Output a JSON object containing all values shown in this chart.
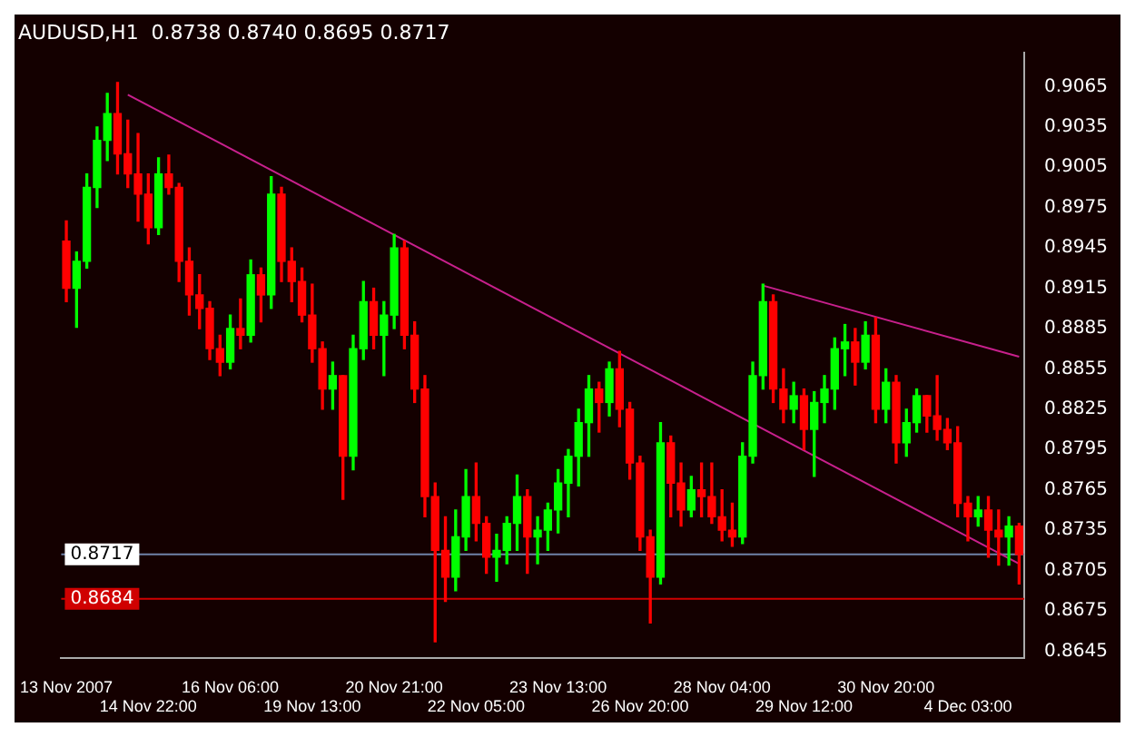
{
  "chart_data": {
    "type": "candlestick",
    "title": "AUDUSD,H1  0.8738 0.8740 0.8695 0.8717",
    "categories": [
      "13 Nov 2007",
      null,
      null,
      null,
      null,
      null,
      null,
      null,
      "14 Nov 22:00",
      null,
      null,
      null,
      null,
      null,
      null,
      null,
      "16 Nov 06:00",
      null,
      null,
      null,
      null,
      null,
      null,
      null,
      "19 Nov 13:00",
      null,
      null,
      null,
      null,
      null,
      null,
      null,
      "20 Nov 21:00",
      null,
      null,
      null,
      null,
      null,
      null,
      null,
      "22 Nov 05:00",
      null,
      null,
      null,
      null,
      null,
      null,
      null,
      "23 Nov 13:00",
      null,
      null,
      null,
      null,
      null,
      null,
      null,
      "26 Nov 20:00",
      null,
      null,
      null,
      null,
      null,
      null,
      null,
      "28 Nov 04:00",
      null,
      null,
      null,
      null,
      null,
      null,
      null,
      "29 Nov 12:00",
      null,
      null,
      null,
      null,
      null,
      null,
      null,
      "30 Nov 20:00",
      null,
      null,
      null,
      null,
      null,
      null,
      null,
      "4 Dec 03:00",
      null,
      null,
      null,
      null,
      null
    ],
    "ohlc": [
      [
        0.895,
        0.8965,
        0.8905,
        0.8915
      ],
      [
        0.8915,
        0.8942,
        0.8886,
        0.8935
      ],
      [
        0.8935,
        0.9,
        0.893,
        0.899
      ],
      [
        0.899,
        0.9035,
        0.8975,
        0.9025
      ],
      [
        0.9025,
        0.906,
        0.901,
        0.9045
      ],
      [
        0.9045,
        0.9068,
        0.9,
        0.9015
      ],
      [
        0.9015,
        0.904,
        0.899,
        0.9
      ],
      [
        0.9,
        0.903,
        0.8965,
        0.8985
      ],
      [
        0.8985,
        0.9,
        0.8948,
        0.896
      ],
      [
        0.896,
        0.9012,
        0.8955,
        0.9
      ],
      [
        0.9,
        0.9014,
        0.8985,
        0.899
      ],
      [
        0.899,
        0.8993,
        0.892,
        0.8935
      ],
      [
        0.8935,
        0.8945,
        0.8895,
        0.891
      ],
      [
        0.891,
        0.8925,
        0.8885,
        0.89
      ],
      [
        0.89,
        0.8905,
        0.8862,
        0.887
      ],
      [
        0.887,
        0.888,
        0.885,
        0.886
      ],
      [
        0.886,
        0.8895,
        0.8855,
        0.8885
      ],
      [
        0.8885,
        0.8907,
        0.887,
        0.888
      ],
      [
        0.888,
        0.8936,
        0.8875,
        0.8925
      ],
      [
        0.8925,
        0.893,
        0.889,
        0.891
      ],
      [
        0.891,
        0.8998,
        0.89,
        0.8985
      ],
      [
        0.8985,
        0.899,
        0.892,
        0.8935
      ],
      [
        0.8935,
        0.8945,
        0.8905,
        0.892
      ],
      [
        0.892,
        0.893,
        0.889,
        0.8895
      ],
      [
        0.8895,
        0.8918,
        0.886,
        0.887
      ],
      [
        0.887,
        0.8875,
        0.8825,
        0.884
      ],
      [
        0.884,
        0.886,
        0.8825,
        0.885
      ],
      [
        0.885,
        0.885,
        0.8758,
        0.879
      ],
      [
        0.879,
        0.888,
        0.878,
        0.887
      ],
      [
        0.887,
        0.892,
        0.8862,
        0.8905
      ],
      [
        0.8905,
        0.8915,
        0.887,
        0.888
      ],
      [
        0.888,
        0.8905,
        0.885,
        0.8895
      ],
      [
        0.8895,
        0.8955,
        0.8885,
        0.8945
      ],
      [
        0.8945,
        0.895,
        0.887,
        0.888
      ],
      [
        0.888,
        0.889,
        0.883,
        0.884
      ],
      [
        0.884,
        0.885,
        0.8745,
        0.876
      ],
      [
        0.876,
        0.877,
        0.8652,
        0.872
      ],
      [
        0.872,
        0.8745,
        0.8682,
        0.87
      ],
      [
        0.87,
        0.875,
        0.869,
        0.873
      ],
      [
        0.873,
        0.878,
        0.872,
        0.876
      ],
      [
        0.876,
        0.8785,
        0.8727,
        0.874
      ],
      [
        0.874,
        0.8745,
        0.8703,
        0.8715
      ],
      [
        0.8715,
        0.8732,
        0.8697,
        0.872
      ],
      [
        0.872,
        0.8745,
        0.871,
        0.874
      ],
      [
        0.874,
        0.8776,
        0.872,
        0.876
      ],
      [
        0.876,
        0.8765,
        0.8703,
        0.873
      ],
      [
        0.873,
        0.8745,
        0.871,
        0.8735
      ],
      [
        0.8735,
        0.8755,
        0.872,
        0.875
      ],
      [
        0.875,
        0.878,
        0.8733,
        0.877
      ],
      [
        0.877,
        0.8795,
        0.8745,
        0.879
      ],
      [
        0.879,
        0.8825,
        0.8768,
        0.8815
      ],
      [
        0.8815,
        0.885,
        0.879,
        0.884
      ],
      [
        0.884,
        0.8845,
        0.8808,
        0.883
      ],
      [
        0.883,
        0.886,
        0.882,
        0.8855
      ],
      [
        0.8855,
        0.8868,
        0.8812,
        0.8825
      ],
      [
        0.8825,
        0.883,
        0.8773,
        0.8785
      ],
      [
        0.8785,
        0.879,
        0.872,
        0.873
      ],
      [
        0.873,
        0.8735,
        0.8666,
        0.87
      ],
      [
        0.87,
        0.8815,
        0.8695,
        0.88
      ],
      [
        0.88,
        0.8805,
        0.8745,
        0.877
      ],
      [
        0.877,
        0.8785,
        0.8738,
        0.875
      ],
      [
        0.875,
        0.8775,
        0.8745,
        0.8765
      ],
      [
        0.8765,
        0.8785,
        0.8745,
        0.876
      ],
      [
        0.876,
        0.8785,
        0.874,
        0.8745
      ],
      [
        0.8745,
        0.8765,
        0.8727,
        0.8735
      ],
      [
        0.8735,
        0.8755,
        0.8723,
        0.873
      ],
      [
        0.873,
        0.88,
        0.8725,
        0.879
      ],
      [
        0.879,
        0.886,
        0.8785,
        0.885
      ],
      [
        0.885,
        0.8918,
        0.884,
        0.8905
      ],
      [
        0.8905,
        0.891,
        0.883,
        0.884
      ],
      [
        0.884,
        0.8855,
        0.8815,
        0.8825
      ],
      [
        0.8825,
        0.8845,
        0.8815,
        0.8835
      ],
      [
        0.8835,
        0.884,
        0.8795,
        0.881
      ],
      [
        0.881,
        0.8838,
        0.8775,
        0.883
      ],
      [
        0.883,
        0.885,
        0.8815,
        0.884
      ],
      [
        0.884,
        0.8878,
        0.8825,
        0.887
      ],
      [
        0.887,
        0.8888,
        0.885,
        0.8875
      ],
      [
        0.8875,
        0.8885,
        0.8843,
        0.886
      ],
      [
        0.886,
        0.889,
        0.8855,
        0.888
      ],
      [
        0.888,
        0.8893,
        0.8815,
        0.8825
      ],
      [
        0.8825,
        0.8855,
        0.8815,
        0.8845
      ],
      [
        0.8845,
        0.885,
        0.8785,
        0.88
      ],
      [
        0.88,
        0.8825,
        0.879,
        0.8815
      ],
      [
        0.8815,
        0.884,
        0.8808,
        0.8835
      ],
      [
        0.8835,
        0.8835,
        0.8808,
        0.882
      ],
      [
        0.882,
        0.885,
        0.8802,
        0.881
      ],
      [
        0.881,
        0.8818,
        0.8795,
        0.88
      ],
      [
        0.88,
        0.8812,
        0.8745,
        0.8755
      ],
      [
        0.8755,
        0.876,
        0.8727,
        0.8745
      ],
      [
        0.8745,
        0.876,
        0.8738,
        0.875
      ],
      [
        0.875,
        0.876,
        0.8715,
        0.8735
      ],
      [
        0.8735,
        0.875,
        0.8709,
        0.873
      ],
      [
        0.873,
        0.8745,
        0.8709,
        0.8738
      ],
      [
        0.8738,
        0.874,
        0.8695,
        0.8717
      ]
    ],
    "colors": [
      "#ff0000",
      "#00ff00",
      "#00ff00",
      "#00ff00",
      "#00ff00",
      "#ff0000",
      "#ff0000",
      "#ff0000",
      "#ff0000",
      "#00ff00",
      "#ff0000",
      "#ff0000",
      "#ff0000",
      "#ff0000",
      "#ff0000",
      "#ff0000",
      "#00ff00",
      "#ff0000",
      "#00ff00",
      "#ff0000",
      "#00ff00",
      "#ff0000",
      "#ff0000",
      "#ff0000",
      "#ff0000",
      "#ff0000",
      "#00ff00",
      "#ff0000",
      "#00ff00",
      "#00ff00",
      "#ff0000",
      "#00ff00",
      "#00ff00",
      "#ff0000",
      "#ff0000",
      "#ff0000",
      "#ff0000",
      "#ff0000",
      "#00ff00",
      "#00ff00",
      "#ff0000",
      "#ff0000",
      "#00ff00",
      "#00ff00",
      "#00ff00",
      "#ff0000",
      "#00ff00",
      "#00ff00",
      "#00ff00",
      "#00ff00",
      "#00ff00",
      "#00ff00",
      "#ff0000",
      "#00ff00",
      "#ff0000",
      "#ff0000",
      "#ff0000",
      "#ff0000",
      "#00ff00",
      "#ff0000",
      "#ff0000",
      "#00ff00",
      "#ff0000",
      "#ff0000",
      "#ff0000",
      "#ff0000",
      "#00ff00",
      "#00ff00",
      "#00ff00",
      "#ff0000",
      "#ff0000",
      "#00ff00",
      "#ff0000",
      "#00ff00",
      "#00ff00",
      "#00ff00",
      "#00ff00",
      "#ff0000",
      "#00ff00",
      "#ff0000",
      "#00ff00",
      "#ff0000",
      "#00ff00",
      "#00ff00",
      "#ff0000",
      "#ff0000",
      "#ff0000",
      "#ff0000",
      "#ff0000",
      "#00ff00",
      "#ff0000",
      "#ff0000",
      "#00ff00",
      "#ff0000"
    ],
    "series": [
      {
        "type": "line",
        "color": "#c8208c",
        "values": [
          null,
          null,
          null,
          null,
          null,
          null,
          0.9059,
          null,
          null,
          null,
          null,
          null,
          null,
          null,
          null,
          null,
          null,
          null,
          null,
          null,
          null,
          null,
          null,
          null,
          null,
          null,
          null,
          null,
          null,
          null,
          null,
          null,
          null,
          null,
          null,
          null,
          null,
          null,
          null,
          null,
          null,
          null,
          null,
          null,
          null,
          null,
          null,
          null,
          null,
          null,
          null,
          null,
          null,
          null,
          null,
          null,
          null,
          null,
          null,
          null,
          null,
          null,
          null,
          null,
          null,
          null,
          null,
          null,
          null,
          null,
          null,
          null,
          null,
          null,
          null,
          null,
          null,
          null,
          null,
          null,
          null,
          null,
          null,
          null,
          null,
          null,
          null,
          null,
          null,
          null,
          null,
          null,
          null,
          0.871
        ]
      },
      {
        "type": "line",
        "color": "#c8208c",
        "values": [
          null,
          null,
          null,
          null,
          null,
          null,
          null,
          null,
          null,
          null,
          null,
          null,
          null,
          null,
          null,
          null,
          null,
          null,
          null,
          null,
          null,
          null,
          null,
          null,
          null,
          null,
          null,
          null,
          null,
          null,
          null,
          null,
          null,
          null,
          null,
          null,
          null,
          null,
          null,
          null,
          null,
          null,
          null,
          null,
          null,
          null,
          null,
          null,
          null,
          null,
          null,
          null,
          null,
          null,
          null,
          null,
          null,
          null,
          null,
          null,
          null,
          null,
          null,
          null,
          null,
          null,
          null,
          null,
          0.8917,
          null,
          null,
          null,
          null,
          null,
          null,
          null,
          null,
          null,
          null,
          null,
          null,
          null,
          null,
          null,
          null,
          null,
          null,
          null,
          null,
          null,
          null,
          null,
          null,
          0.8864
        ]
      }
    ],
    "ref_lines": [
      {
        "axis": "y",
        "value": 0.8717,
        "label": "0.8717",
        "color": "#6f82a8"
      },
      {
        "axis": "y",
        "value": 0.8684,
        "label": "0.8684",
        "color": "#d00000"
      }
    ],
    "ylim": [
      0.864,
      0.909
    ],
    "yticks": [
      0.8645,
      0.8675,
      0.8705,
      0.8735,
      0.8765,
      0.8795,
      0.8825,
      0.8855,
      0.8885,
      0.8915,
      0.8945,
      0.8975,
      0.9005,
      0.9035,
      0.9065
    ]
  }
}
